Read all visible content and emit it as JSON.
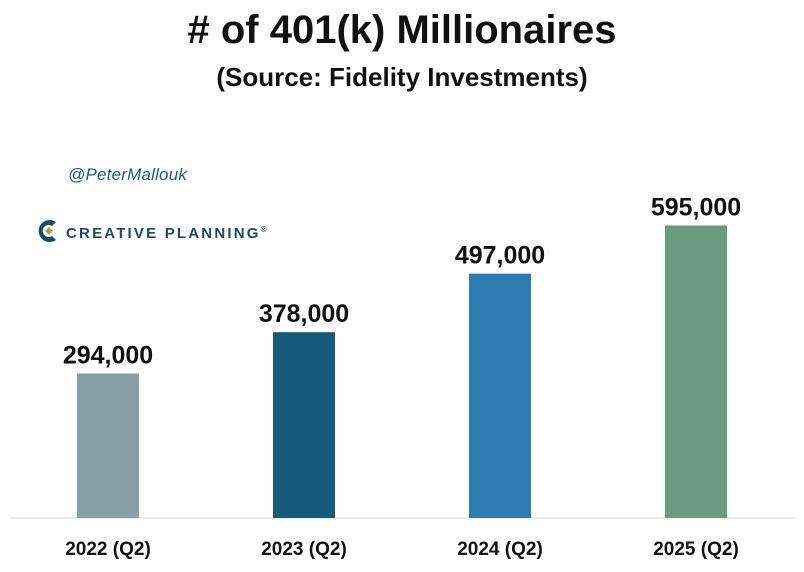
{
  "title": "# of 401(k) Millionaires",
  "subtitle": "(Source: Fidelity Investments)",
  "handle": "@PeterMallouk",
  "brand": {
    "name": "CREATIVE PLANNING",
    "registered": "®",
    "logo_icon": "creative-planning-c-logo"
  },
  "chart_data": {
    "type": "bar",
    "categories": [
      "2022 (Q2)",
      "2023 (Q2)",
      "2024 (Q2)",
      "2025 (Q2)"
    ],
    "values": [
      294000,
      378000,
      497000,
      595000
    ],
    "value_labels": [
      "294,000",
      "378,000",
      "497,000",
      "595,000"
    ],
    "colors": [
      "#87a0a6",
      "#175b7a",
      "#2d7db3",
      "#6a9c82"
    ],
    "xlabel": "",
    "ylabel": "",
    "ylim": [
      0,
      600000
    ],
    "grid": false,
    "legend": "none"
  }
}
